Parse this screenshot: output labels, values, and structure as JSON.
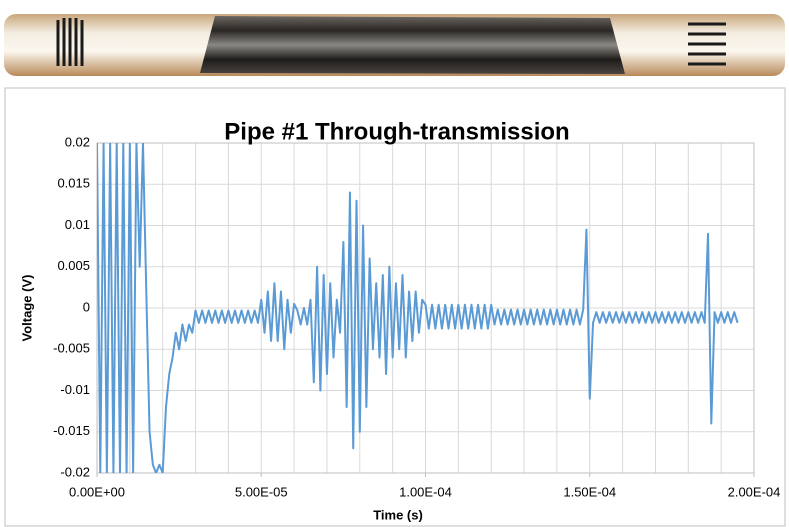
{
  "chart_data": {
    "type": "line",
    "title": "Pipe #1 Through-transmission",
    "x_label": "Time (s)",
    "y_label": "Voltage (V)",
    "xlim": [
      0,
      0.0002
    ],
    "xticks": [
      {
        "value": 0,
        "label": "0.00E+00"
      },
      {
        "value": 5e-05,
        "label": "5.00E-05"
      },
      {
        "value": 0.0001,
        "label": "1.00E-04"
      },
      {
        "value": 0.00015,
        "label": "1.50E-04"
      },
      {
        "value": 0.0002,
        "label": "2.00E-04"
      }
    ],
    "xminorticks": [
      0,
      1e-05,
      2e-05,
      3e-05,
      4e-05,
      5e-05,
      6e-05,
      7e-05,
      8e-05,
      9e-05,
      0.0001,
      0.00011,
      0.00012,
      0.00013,
      0.00014,
      0.00015,
      0.00016,
      0.00017,
      0.00018,
      0.00019,
      0.0002
    ],
    "ylim": [
      -0.02,
      0.02
    ],
    "yticks": [
      -0.02,
      -0.015,
      -0.01,
      -0.005,
      0,
      0.005,
      0.01,
      0.015,
      0.02
    ],
    "grid": true,
    "x": [
      0,
      1e-06,
      2e-06,
      3e-06,
      4e-06,
      5e-06,
      6e-06,
      7e-06,
      8e-06,
      9e-06,
      1e-05,
      1.1e-05,
      1.2e-05,
      1.3e-05,
      1.4e-05,
      1.5e-05,
      1.6e-05,
      1.7e-05,
      1.8e-05,
      1.9e-05,
      2e-05,
      2.1e-05,
      2.2e-05,
      2.3e-05,
      2.4e-05,
      2.5e-05,
      2.6e-05,
      2.7e-05,
      2.8e-05,
      2.9e-05,
      3e-05,
      3.1e-05,
      3.2e-05,
      3.3e-05,
      3.4e-05,
      3.5e-05,
      3.6e-05,
      3.7e-05,
      3.8e-05,
      3.9e-05,
      4e-05,
      4.1e-05,
      4.2e-05,
      4.3e-05,
      4.4e-05,
      4.5e-05,
      4.6e-05,
      4.7e-05,
      4.8e-05,
      4.9e-05,
      5e-05,
      5.1e-05,
      5.2e-05,
      5.3e-05,
      5.4e-05,
      5.5e-05,
      5.6e-05,
      5.7e-05,
      5.8e-05,
      5.9e-05,
      6e-05,
      6.1e-05,
      6.2e-05,
      6.3e-05,
      6.4e-05,
      6.5e-05,
      6.6e-05,
      6.7e-05,
      6.8e-05,
      6.9e-05,
      7e-05,
      7.1e-05,
      7.2e-05,
      7.3e-05,
      7.4e-05,
      7.5e-05,
      7.6e-05,
      7.7e-05,
      7.8e-05,
      7.9e-05,
      8e-05,
      8.1e-05,
      8.2e-05,
      8.3e-05,
      8.4e-05,
      8.5e-05,
      8.6e-05,
      8.7e-05,
      8.8e-05,
      8.9e-05,
      9e-05,
      9.1e-05,
      9.2e-05,
      9.3e-05,
      9.4e-05,
      9.5e-05,
      9.6e-05,
      9.7e-05,
      9.8e-05,
      9.9e-05,
      0.0001,
      0.000101,
      0.000102,
      0.000103,
      0.000104,
      0.000105,
      0.000106,
      0.000107,
      0.000108,
      0.000109,
      0.00011,
      0.000111,
      0.000112,
      0.000113,
      0.000114,
      0.000115,
      0.000116,
      0.000117,
      0.000118,
      0.000119,
      0.00012,
      0.000121,
      0.000122,
      0.000123,
      0.000124,
      0.000125,
      0.000126,
      0.000127,
      0.000128,
      0.000129,
      0.00013,
      0.000131,
      0.000132,
      0.000133,
      0.000134,
      0.000135,
      0.000136,
      0.000137,
      0.000138,
      0.000139,
      0.00014,
      0.000141,
      0.000142,
      0.000143,
      0.000144,
      0.000145,
      0.000146,
      0.000147,
      0.000148,
      0.000149,
      0.00015,
      0.000151,
      0.000152,
      0.000153,
      0.000154,
      0.000155,
      0.000156,
      0.000157,
      0.000158,
      0.000159,
      0.00016,
      0.000161,
      0.000162,
      0.000163,
      0.000164,
      0.000165,
      0.000166,
      0.000167,
      0.000168,
      0.000169,
      0.00017,
      0.000171,
      0.000172,
      0.000173,
      0.000174,
      0.000175,
      0.000176,
      0.000177,
      0.000178,
      0.000179,
      0.00018,
      0.000181,
      0.000182,
      0.000183,
      0.000184,
      0.000185,
      0.000186,
      0.000187,
      0.000188,
      0.000189,
      0.00019,
      0.000191,
      0.000192,
      0.000193,
      0.000194,
      0.000195
    ],
    "series": [
      {
        "color": "#5b9bd5",
        "values": [
          0.02,
          -0.02,
          0.02,
          -0.02,
          0.02,
          -0.02,
          0.02,
          -0.02,
          0.02,
          -0.02,
          0.02,
          -0.02,
          0.02,
          0.005,
          0.02,
          0.002,
          -0.015,
          -0.019,
          -0.02,
          -0.019,
          -0.02,
          -0.012,
          -0.008,
          -0.006,
          -0.003,
          -0.005,
          -0.002,
          -0.004,
          -0.002,
          -0.003,
          -0.0003,
          -0.0018,
          -0.0003,
          -0.0018,
          -0.0003,
          -0.0018,
          -0.0003,
          -0.0018,
          -0.0003,
          -0.0018,
          -0.0003,
          -0.0018,
          -0.0003,
          -0.0018,
          -0.0003,
          -0.0018,
          -0.0003,
          -0.0018,
          -0.0003,
          -0.0018,
          0.001,
          -0.003,
          0.002,
          -0.004,
          0.003,
          -0.004,
          0.002,
          -0.005,
          0.001,
          -0.003,
          0.0005,
          -0.0003,
          -0.002,
          0,
          -0.002,
          0.001,
          -0.009,
          0.005,
          -0.01,
          0.004,
          -0.008,
          0.003,
          -0.006,
          0.001,
          -0.003,
          0.008,
          -0.012,
          0.014,
          -0.017,
          0.013,
          -0.015,
          0.01,
          -0.012,
          0.006,
          -0.005,
          0.003,
          -0.006,
          0.004,
          -0.008,
          0.005,
          -0.006,
          0.003,
          -0.005,
          0.004,
          -0.006,
          0.002,
          -0.004,
          0.002,
          -0.003,
          0.001,
          0.0004,
          -0.0025,
          0.0004,
          -0.0025,
          0.0004,
          -0.0025,
          0.0004,
          -0.0025,
          0.0004,
          -0.0025,
          0.0004,
          -0.0025,
          0.0004,
          -0.0025,
          0.0004,
          -0.0025,
          0.0004,
          -0.0025,
          0.0004,
          -0.0025,
          0.0004,
          -0.002,
          -0.0002,
          -0.002,
          -0.0002,
          -0.002,
          -0.0002,
          -0.002,
          -0.0002,
          -0.002,
          -0.0002,
          -0.002,
          -0.0002,
          -0.002,
          -0.0002,
          -0.002,
          -0.0002,
          -0.002,
          -0.0002,
          -0.002,
          -0.0002,
          -0.002,
          -0.0002,
          -0.002,
          -0.0002,
          -0.002,
          -0.0002,
          -0.002,
          -0.0002,
          0.0095,
          -0.011,
          -0.0018,
          -0.0005,
          -0.0018,
          -0.0005,
          -0.0018,
          -0.0005,
          -0.0018,
          -0.0005,
          -0.0018,
          -0.0005,
          -0.0018,
          -0.0005,
          -0.0018,
          -0.0005,
          -0.0018,
          -0.0005,
          -0.0018,
          -0.0005,
          -0.0018,
          -0.0005,
          -0.0018,
          -0.0005,
          -0.0018,
          -0.0005,
          -0.0018,
          -0.0005,
          -0.0018,
          -0.0005,
          -0.0018,
          -0.0005,
          -0.0018,
          -0.0005,
          -0.0018,
          -0.0005,
          -0.0018,
          0.009,
          -0.014,
          -0.0005,
          -0.0018,
          -0.0005,
          -0.0018,
          -0.0005,
          -0.0018,
          -0.0005,
          -0.0018
        ]
      }
    ]
  }
}
